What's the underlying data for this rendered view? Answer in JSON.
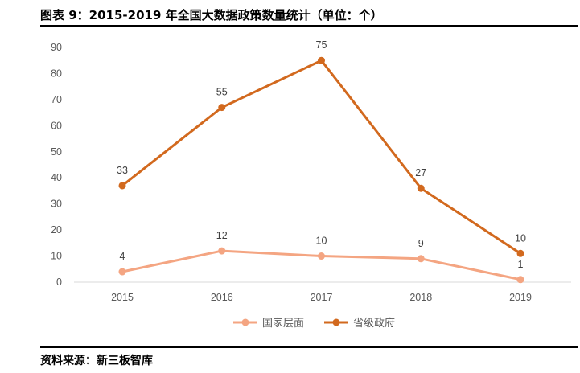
{
  "title": "图表 9：2015-2019 年全国大数据政策数量统计（单位：个）",
  "source": "资料来源：新三板智库",
  "chart_data": {
    "type": "line",
    "categories": [
      "2015",
      "2016",
      "2017",
      "2018",
      "2019"
    ],
    "ylim": [
      0,
      90
    ],
    "yticks": [
      0,
      10,
      20,
      30,
      40,
      50,
      60,
      70,
      80,
      90
    ],
    "grid": false,
    "legend": "bottom",
    "series": [
      {
        "name": "国家层面",
        "color": "#F4A582",
        "values": [
          4,
          12,
          10,
          9,
          1
        ],
        "labels": [
          "4",
          "12",
          "10",
          "9",
          "1"
        ]
      },
      {
        "name": "省级政府",
        "color": "#D2691E",
        "values": [
          37,
          67,
          85,
          36,
          11
        ],
        "labels": [
          "33",
          "55",
          "75",
          "27",
          "10"
        ]
      }
    ]
  }
}
